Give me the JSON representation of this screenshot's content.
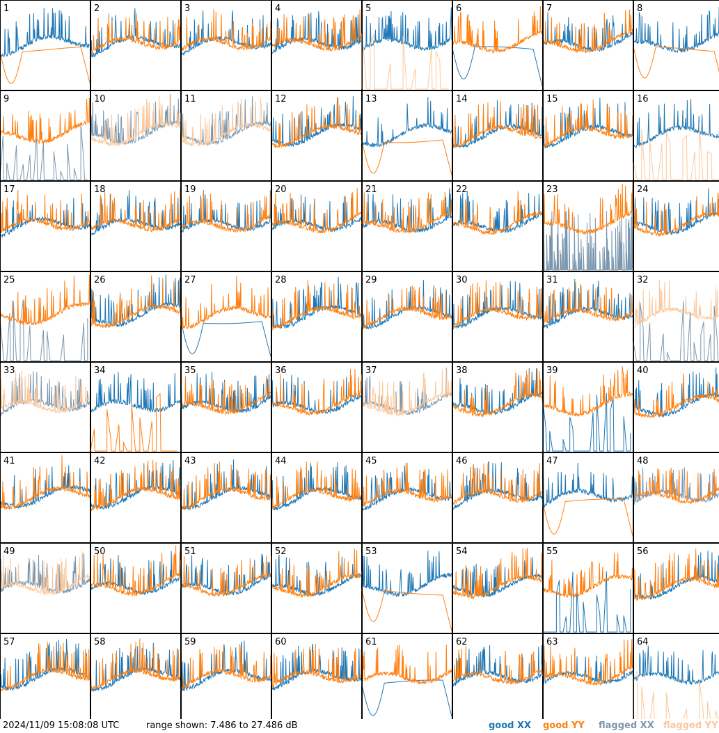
{
  "chart_data": {
    "type": "line",
    "panel_grid": {
      "rows": 8,
      "cols": 8
    },
    "panels": [
      {
        "label": "1",
        "xx": "good",
        "yy": "good",
        "shape": "sagYY"
      },
      {
        "label": "2",
        "xx": "good",
        "yy": "good",
        "shape": "normal"
      },
      {
        "label": "3",
        "xx": "good",
        "yy": "good",
        "shape": "normal"
      },
      {
        "label": "4",
        "xx": "good",
        "yy": "good",
        "shape": "normal"
      },
      {
        "label": "5",
        "xx": "good",
        "yy": "flagged",
        "shape": "yyDead"
      },
      {
        "label": "6",
        "xx": "good",
        "yy": "good",
        "shape": "sagXX"
      },
      {
        "label": "7",
        "xx": "good",
        "yy": "good",
        "shape": "normal"
      },
      {
        "label": "8",
        "xx": "good",
        "yy": "good",
        "shape": "sagYY"
      },
      {
        "label": "9",
        "xx": "flagged",
        "yy": "good",
        "shape": "xxDead"
      },
      {
        "label": "10",
        "xx": "flagged",
        "yy": "flagged",
        "shape": "normal"
      },
      {
        "label": "11",
        "xx": "flagged",
        "yy": "flagged",
        "shape": "normal"
      },
      {
        "label": "12",
        "xx": "good",
        "yy": "good",
        "shape": "normal"
      },
      {
        "label": "13",
        "xx": "good",
        "yy": "good",
        "shape": "sagYY"
      },
      {
        "label": "14",
        "xx": "good",
        "yy": "good",
        "shape": "normal"
      },
      {
        "label": "15",
        "xx": "good",
        "yy": "good",
        "shape": "normal"
      },
      {
        "label": "16",
        "xx": "good",
        "yy": "flagged",
        "shape": "yyDead"
      },
      {
        "label": "17",
        "xx": "good",
        "yy": "good",
        "shape": "normal"
      },
      {
        "label": "18",
        "xx": "good",
        "yy": "good",
        "shape": "normal"
      },
      {
        "label": "19",
        "xx": "good",
        "yy": "good",
        "shape": "normal"
      },
      {
        "label": "20",
        "xx": "good",
        "yy": "good",
        "shape": "normal"
      },
      {
        "label": "21",
        "xx": "good",
        "yy": "good",
        "shape": "normal"
      },
      {
        "label": "22",
        "xx": "good",
        "yy": "good",
        "shape": "normal"
      },
      {
        "label": "23",
        "xx": "flagged",
        "yy": "good",
        "shape": "xxNoisy"
      },
      {
        "label": "24",
        "xx": "good",
        "yy": "good",
        "shape": "normal"
      },
      {
        "label": "25",
        "xx": "flagged",
        "yy": "good",
        "shape": "xxDead"
      },
      {
        "label": "26",
        "xx": "good",
        "yy": "good",
        "shape": "normal"
      },
      {
        "label": "27",
        "xx": "good",
        "yy": "good",
        "shape": "sagXX"
      },
      {
        "label": "28",
        "xx": "good",
        "yy": "good",
        "shape": "normal"
      },
      {
        "label": "29",
        "xx": "good",
        "yy": "good",
        "shape": "normal"
      },
      {
        "label": "30",
        "xx": "good",
        "yy": "good",
        "shape": "normal"
      },
      {
        "label": "31",
        "xx": "good",
        "yy": "good",
        "shape": "normal"
      },
      {
        "label": "32",
        "xx": "flagged",
        "yy": "flagged",
        "shape": "xxDead"
      },
      {
        "label": "33",
        "xx": "flagged",
        "yy": "flagged",
        "shape": "normal"
      },
      {
        "label": "34",
        "xx": "good",
        "yy": "good",
        "shape": "yyDead"
      },
      {
        "label": "35",
        "xx": "good",
        "yy": "good",
        "shape": "normal"
      },
      {
        "label": "36",
        "xx": "good",
        "yy": "good",
        "shape": "normal"
      },
      {
        "label": "37",
        "xx": "flagged",
        "yy": "flagged",
        "shape": "normal"
      },
      {
        "label": "38",
        "xx": "good",
        "yy": "good",
        "shape": "normal"
      },
      {
        "label": "39",
        "xx": "good",
        "yy": "good",
        "shape": "xxDead"
      },
      {
        "label": "40",
        "xx": "good",
        "yy": "good",
        "shape": "normal"
      },
      {
        "label": "41",
        "xx": "good",
        "yy": "good",
        "shape": "normal"
      },
      {
        "label": "42",
        "xx": "good",
        "yy": "good",
        "shape": "normal"
      },
      {
        "label": "43",
        "xx": "good",
        "yy": "good",
        "shape": "normal"
      },
      {
        "label": "44",
        "xx": "good",
        "yy": "good",
        "shape": "normal"
      },
      {
        "label": "45",
        "xx": "good",
        "yy": "good",
        "shape": "normal"
      },
      {
        "label": "46",
        "xx": "good",
        "yy": "good",
        "shape": "normal"
      },
      {
        "label": "47",
        "xx": "good",
        "yy": "good",
        "shape": "sagYY"
      },
      {
        "label": "48",
        "xx": "flagged",
        "yy": "good",
        "shape": "normal"
      },
      {
        "label": "49",
        "xx": "flagged",
        "yy": "flagged",
        "shape": "normal"
      },
      {
        "label": "50",
        "xx": "good",
        "yy": "good",
        "shape": "normal"
      },
      {
        "label": "51",
        "xx": "good",
        "yy": "good",
        "shape": "normal"
      },
      {
        "label": "52",
        "xx": "good",
        "yy": "good",
        "shape": "normal"
      },
      {
        "label": "53",
        "xx": "good",
        "yy": "good",
        "shape": "sagYY"
      },
      {
        "label": "54",
        "xx": "good",
        "yy": "good",
        "shape": "normal"
      },
      {
        "label": "55",
        "xx": "good",
        "yy": "good",
        "shape": "xxDead"
      },
      {
        "label": "56",
        "xx": "good",
        "yy": "good",
        "shape": "normal"
      },
      {
        "label": "57",
        "xx": "good",
        "yy": "good",
        "shape": "normal"
      },
      {
        "label": "58",
        "xx": "good",
        "yy": "good",
        "shape": "normal"
      },
      {
        "label": "59",
        "xx": "good",
        "yy": "good",
        "shape": "normal"
      },
      {
        "label": "60",
        "xx": "good",
        "yy": "good",
        "shape": "normal"
      },
      {
        "label": "61",
        "xx": "good",
        "yy": "good",
        "shape": "sagXX"
      },
      {
        "label": "62",
        "xx": "good",
        "yy": "good",
        "shape": "normal"
      },
      {
        "label": "63",
        "xx": "good",
        "yy": "good",
        "shape": "normal"
      },
      {
        "label": "64",
        "xx": "good",
        "yy": "flagged",
        "shape": "yyDead"
      }
    ],
    "y_range_db": [
      7.486,
      27.486
    ],
    "colors": {
      "good_xx": "#1f77b4",
      "good_yy": "#ff7f0e",
      "flagged_xx": "#7b97ae",
      "flagged_yy": "#fbc89c"
    }
  },
  "footer": {
    "timestamp": "2024/11/09 15:08:08 UTC",
    "range": "range shown: 7.486 to 27.486 dB"
  },
  "legend": {
    "good_xx": "good XX",
    "good_yy": "good YY",
    "flagged_xx": "flagged XX",
    "flagged_yy": "flagged YY"
  }
}
